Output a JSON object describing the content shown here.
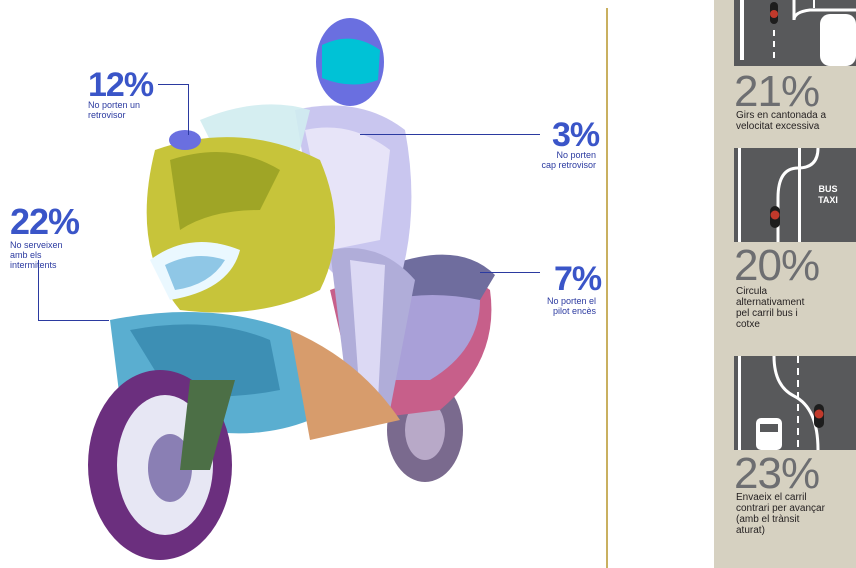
{
  "stats_left": {
    "mirror": {
      "pct": "12%",
      "line1": "No porten un",
      "line2": "retrovisor"
    },
    "indicators": {
      "pct": "22%",
      "line1": "No serveixen",
      "line2": "amb els",
      "line3": "intermitents"
    }
  },
  "stats_right": {
    "no_mirror": {
      "pct": "3%",
      "line1": "No porten",
      "line2": "cap retrovisor"
    },
    "pilot": {
      "pct": "7%",
      "line1": "No porten el",
      "line2": "pilot encès"
    }
  },
  "sidebar": {
    "items": [
      {
        "pct": "21%",
        "lines": [
          "Girs en cantonada a",
          "velocitat excessiva"
        ]
      },
      {
        "pct": "20%",
        "lines": [
          "Circula",
          "alternativament",
          "pel carril bus i",
          "cotxe"
        ],
        "sign": [
          "BUS",
          "TAXI"
        ]
      },
      {
        "pct": "23%",
        "lines": [
          "Envaeix el carril",
          "contrari per avançar",
          "(amb el trànsit",
          "aturat)"
        ]
      }
    ]
  },
  "colors": {
    "accent_blue": "#3a55c8",
    "divider_gold": "#c9b060",
    "panel_bg": "#d6d1c1",
    "tile_gray": "#58595b",
    "pct_gray": "#6d6e71"
  },
  "icons": [
    "scooter-illustration",
    "road-diagram-icon",
    "motorbike-icon",
    "car-icon"
  ]
}
